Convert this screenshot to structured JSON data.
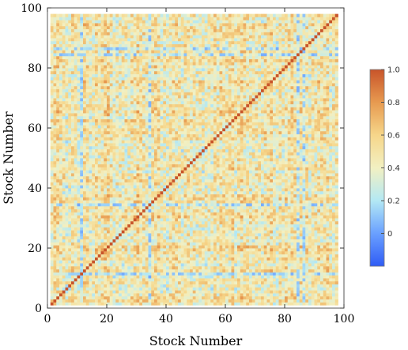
{
  "chart_data": {
    "type": "heatmap",
    "title": "",
    "xlabel": "Stock Number",
    "ylabel": "Stock Number",
    "n": 97,
    "xlim": [
      0,
      100
    ],
    "ylim": [
      0,
      100
    ],
    "x_ticks": [
      0,
      20,
      40,
      60,
      80,
      100
    ],
    "y_ticks": [
      0,
      20,
      40,
      60,
      80,
      100
    ],
    "x_tick_labels": [
      "0",
      "20",
      "40",
      "60",
      "80",
      "100"
    ],
    "y_tick_labels": [
      "0",
      "20",
      "40",
      "60",
      "80",
      "100"
    ],
    "diagonal_value": 1.0,
    "typical_offdiagonal_range": [
      0.2,
      0.7
    ],
    "low_correlation_stocks": [
      11,
      34,
      84,
      86
    ],
    "high_correlation_stocks": [
      20,
      30,
      62,
      75
    ],
    "colorbar": {
      "range": [
        -0.2,
        1.0
      ],
      "ticks": [
        0,
        0.2,
        0.4,
        0.6,
        0.8,
        1.0
      ],
      "tick_labels": [
        "0",
        "0.2",
        "0.4",
        "0.6",
        "0.8",
        "1.0"
      ],
      "colors": [
        "#2f5cf5",
        "#6aa0ff",
        "#b3e8f4",
        "#f2f0c2",
        "#f6d68a",
        "#e79a50",
        "#c8542a"
      ]
    },
    "grid": false,
    "legend": "colorbar right"
  }
}
